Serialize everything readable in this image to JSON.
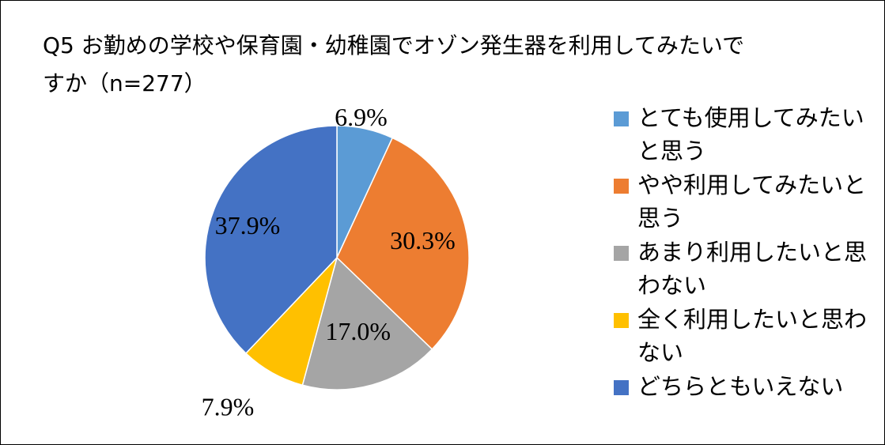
{
  "chart_data": {
    "type": "pie",
    "title": "Q5 お勤めの学校や保育園・幼稚園でオゾン発生器を利用してみたいですか（n=277）",
    "categories": [
      "とても使用してみたいと思う",
      "やや利用してみたいと思う",
      "あまり利用したいと思わない",
      "全く利用したいと思わない",
      "どちらともいえない"
    ],
    "values": [
      6.9,
      30.3,
      17.0,
      7.9,
      37.9
    ],
    "labels": [
      "6.9%",
      "30.3%",
      "17.0%",
      "7.9%",
      "37.9%"
    ],
    "colors": [
      "#5B9BD5",
      "#ED7D31",
      "#A5A5A5",
      "#FFC000",
      "#4472C4"
    ],
    "legend_position": "right"
  }
}
